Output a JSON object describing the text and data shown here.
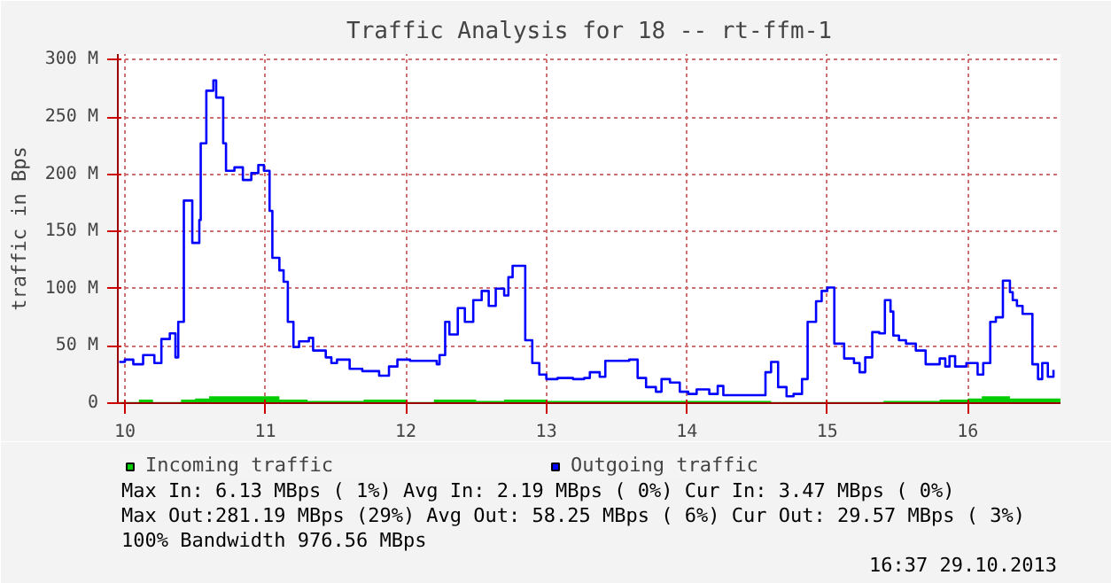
{
  "chart_data": {
    "type": "step",
    "title": "Traffic Analysis for 18 -- rt-ffm-1",
    "ylabel": "traffic in Bps",
    "xlim": [
      9.95,
      16.66
    ],
    "xticks": [
      10,
      11,
      12,
      13,
      14,
      15,
      16
    ],
    "ylim": [
      0,
      305
    ],
    "yticks": [
      0,
      {
        "value": 50,
        "label": "50 M"
      },
      {
        "value": 100,
        "label": "100 M"
      },
      {
        "value": 150,
        "label": "150 M"
      },
      {
        "value": 200,
        "label": "200 M"
      },
      {
        "value": 250,
        "label": "250 M"
      },
      {
        "value": 300,
        "label": "300 M"
      }
    ],
    "grid": true,
    "legend": "bottom",
    "series": [
      {
        "name": "Incoming traffic",
        "type": "area",
        "color": "#00cc00",
        "x": [
          9.96,
          10.1,
          10.2,
          10.4,
          10.5,
          10.6,
          10.9,
          11.1,
          11.3,
          11.5,
          11.7,
          12.0,
          12.2,
          12.5,
          12.7,
          13.0,
          14.0,
          14.6,
          15.4,
          15.8,
          16.0,
          16.1,
          16.3,
          16.66
        ],
        "values": [
          1,
          3,
          1,
          3,
          4,
          6,
          6,
          3,
          2,
          2,
          3,
          1,
          3,
          2,
          3,
          2,
          2,
          1,
          2,
          3,
          4,
          6,
          4,
          3
        ]
      },
      {
        "name": "Outgoing traffic",
        "color": "#0000ff",
        "x": [
          9.96,
          10.0,
          10.06,
          10.13,
          10.21,
          10.26,
          10.32,
          10.36,
          10.38,
          10.42,
          10.48,
          10.53,
          10.54,
          10.58,
          10.63,
          10.65,
          10.7,
          10.72,
          10.78,
          10.84,
          10.9,
          10.95,
          10.99,
          11.03,
          11.05,
          11.1,
          11.13,
          11.16,
          11.2,
          11.24,
          11.31,
          11.34,
          11.43,
          11.47,
          11.51,
          11.6,
          11.69,
          11.81,
          11.88,
          11.94,
          12.03,
          12.15,
          12.22,
          12.24,
          12.28,
          12.31,
          12.37,
          12.42,
          12.48,
          12.54,
          12.59,
          12.64,
          12.7,
          12.73,
          12.76,
          12.8,
          12.85,
          12.9,
          12.95,
          13.0,
          13.08,
          13.19,
          13.27,
          13.31,
          13.38,
          13.42,
          13.59,
          13.65,
          13.71,
          13.78,
          13.82,
          13.88,
          13.95,
          14.01,
          14.07,
          14.16,
          14.22,
          14.26,
          14.47,
          14.56,
          14.6,
          14.65,
          14.71,
          14.76,
          14.82,
          14.86,
          14.92,
          14.96,
          15.0,
          15.05,
          15.12,
          15.19,
          15.23,
          15.27,
          15.32,
          15.37,
          15.41,
          15.45,
          15.47,
          15.51,
          15.56,
          15.63,
          15.7,
          15.8,
          15.84,
          15.87,
          15.91,
          15.99,
          16.07,
          16.11,
          16.16,
          16.2,
          16.25,
          16.3,
          16.32,
          16.35,
          16.39,
          16.46,
          16.5,
          16.53,
          16.57,
          16.61
        ],
        "values": [
          36,
          38,
          34,
          42,
          35,
          56,
          61,
          40,
          71,
          177,
          140,
          160,
          227,
          273,
          282,
          267,
          227,
          203,
          206,
          195,
          201,
          208,
          203,
          168,
          127,
          116,
          106,
          71,
          49,
          54,
          57,
          46,
          40,
          35,
          38,
          30,
          28,
          24,
          32,
          38,
          37,
          37,
          34,
          42,
          71,
          60,
          83,
          71,
          90,
          98,
          85,
          100,
          94,
          110,
          120,
          120,
          55,
          35,
          25,
          21,
          22,
          21,
          22,
          27,
          23,
          37,
          38,
          22,
          14,
          10,
          21,
          18,
          10,
          8,
          12,
          8,
          15,
          7,
          7,
          27,
          36,
          14,
          6,
          8,
          21,
          71,
          89,
          98,
          101,
          52,
          39,
          35,
          27,
          40,
          62,
          61,
          90,
          80,
          59,
          55,
          52,
          46,
          34,
          39,
          32,
          41,
          32,
          35,
          25,
          35,
          71,
          75,
          107,
          97,
          90,
          85,
          78,
          34,
          21,
          35,
          23,
          29
        ]
      }
    ],
    "annotations": [
      "Max In:   6.13 MBps ( 1%)  Avg In:   2.19 MBps ( 0%)  Cur In:   3.47 MBps ( 0%)",
      "Max Out:281.19 MBps (29%)  Avg Out: 58.25 MBps ( 6%)  Cur Out: 29.57 MBps ( 3%)",
      "100% Bandwidth 976.56 MBps",
      "16:37 29.10.2013"
    ]
  }
}
